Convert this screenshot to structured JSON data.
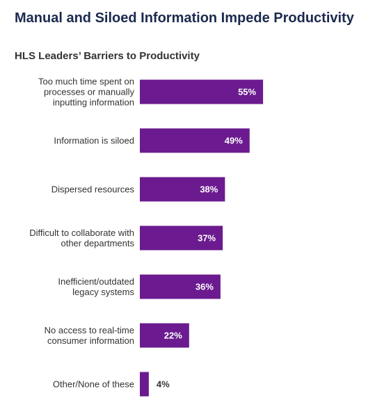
{
  "chart_data": {
    "type": "bar",
    "orientation": "horizontal",
    "title": "Manual and Siloed Information Impede Productivity",
    "subtitle": "HLS Leaders’ Barriers to Productivity",
    "categories": [
      "Too much time spent on processes or manually inputting information",
      "Information is siloed",
      "Dispersed resources",
      "Difficult to collaborate with other departments",
      "Inefficient/outdated legacy systems",
      "No access to real-time consumer information",
      "Other/None of these"
    ],
    "category_lines": [
      [
        "Too much time spent on",
        "processes or manually",
        "inputting information"
      ],
      [
        "Information is siloed"
      ],
      [
        "Dispersed resources"
      ],
      [
        "Difficult to collaborate with",
        "other departments"
      ],
      [
        "Inefficient/outdated",
        "legacy systems"
      ],
      [
        "No access to real-time",
        "consumer information"
      ],
      [
        "Other/None of these"
      ]
    ],
    "values": [
      55,
      49,
      38,
      37,
      36,
      22,
      4
    ],
    "value_labels": [
      "55%",
      "49%",
      "38%",
      "37%",
      "36%",
      "22%",
      "4%"
    ],
    "xlim": [
      0,
      100
    ],
    "grid": false,
    "legend": "none",
    "bar_color": "#6b1b8f",
    "label_inside_color": "#ffffff",
    "label_outside_color": "#333333"
  }
}
